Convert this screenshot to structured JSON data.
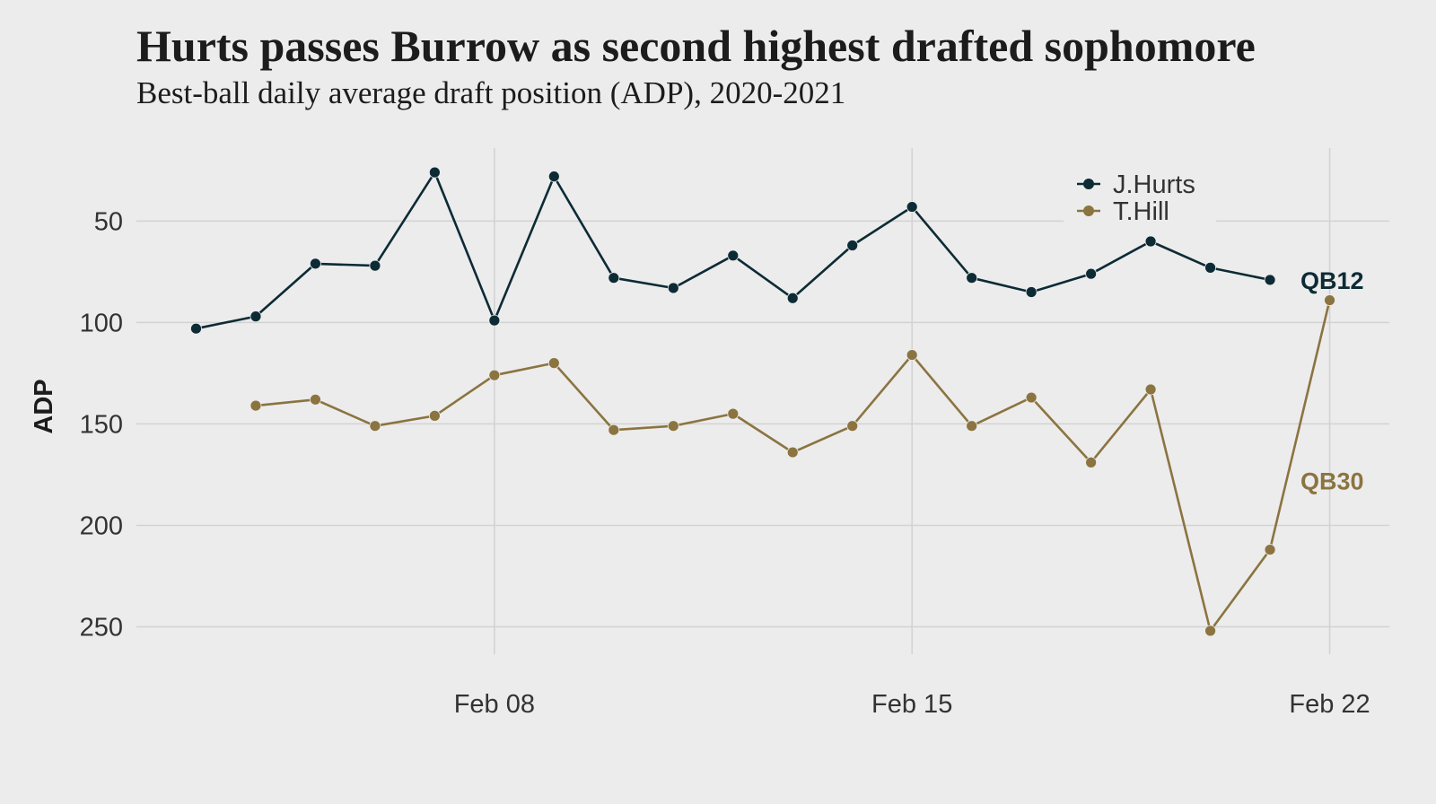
{
  "title": "Hurts passes Burrow as second highest drafted sophomore",
  "subtitle": "Best-ball daily average draft position (ADP), 2020-2021",
  "chart_data": {
    "type": "line",
    "title": "Hurts passes Burrow as second highest drafted sophomore",
    "subtitle": "Best-ball daily average draft position (ADP), 2020-2021",
    "xlabel": "",
    "ylabel": "ADP",
    "y_reversed": true,
    "ylim": [
      275,
      14
    ],
    "yticks": [
      50,
      100,
      150,
      200,
      250
    ],
    "xlim": [
      "2021-02-02",
      "2021-02-23"
    ],
    "xticks": [
      {
        "date": "2021-02-08",
        "label": "Feb 08"
      },
      {
        "date": "2021-02-15",
        "label": "Feb 15"
      },
      {
        "date": "2021-02-22",
        "label": "Feb 22"
      }
    ],
    "grid": true,
    "legend_position": "top-right",
    "x": [
      "2021-02-03",
      "2021-02-04",
      "2021-02-05",
      "2021-02-06",
      "2021-02-07",
      "2021-02-08",
      "2021-02-09",
      "2021-02-10",
      "2021-02-11",
      "2021-02-12",
      "2021-02-13",
      "2021-02-14",
      "2021-02-15",
      "2021-02-16",
      "2021-02-17",
      "2021-02-18",
      "2021-02-19",
      "2021-02-20",
      "2021-02-21",
      "2021-02-22"
    ],
    "series": [
      {
        "name": "J.Hurts",
        "color": "#0d2b35",
        "values": [
          103,
          97,
          71,
          72,
          26,
          99,
          28,
          78,
          83,
          67,
          88,
          62,
          43,
          78,
          85,
          76,
          60,
          73,
          79,
          null
        ],
        "end_label": "QB12"
      },
      {
        "name": "T.Hill",
        "color": "#8b7440",
        "values": [
          null,
          141,
          138,
          151,
          146,
          126,
          120,
          153,
          151,
          145,
          164,
          151,
          116,
          151,
          137,
          169,
          133,
          252,
          212,
          89
        ],
        "end_label": "QB30"
      }
    ]
  }
}
